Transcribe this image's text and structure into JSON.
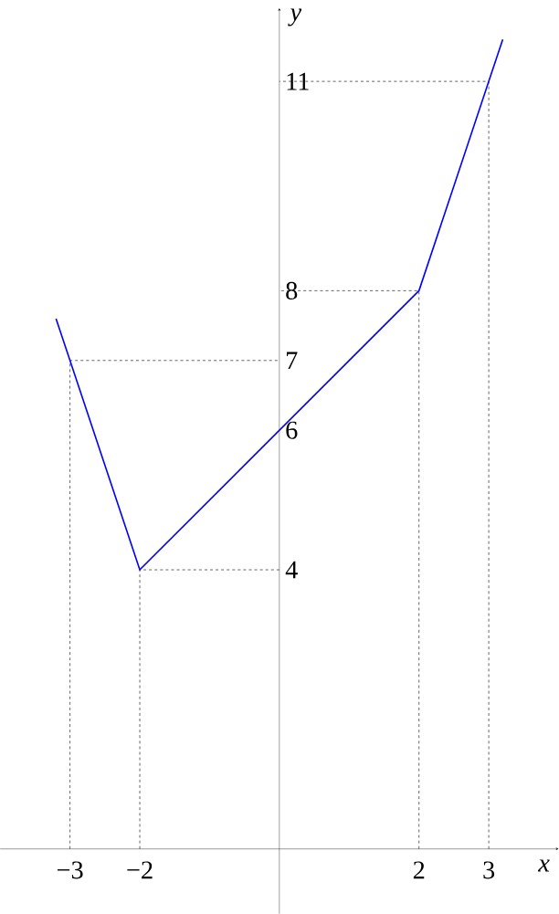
{
  "chart_data": {
    "type": "line",
    "xlabel": "x",
    "ylabel": "y",
    "series": [
      {
        "color": "#0000ff",
        "x": [
          -3.2,
          -3,
          -2,
          2,
          3,
          3.2
        ],
        "values": [
          7.6,
          7,
          4,
          8,
          11,
          11.6
        ]
      },
      {
        "color": "#000000",
        "line_style": "dashed",
        "x": [
          -3,
          -3,
          0
        ],
        "values": [
          0,
          7,
          7
        ]
      },
      {
        "color": "#000000",
        "line_style": "dashed",
        "x": [
          -2,
          -2,
          0
        ],
        "values": [
          0,
          4,
          4
        ]
      },
      {
        "color": "#000000",
        "line_style": "dashed",
        "x": [
          2,
          2,
          0
        ],
        "values": [
          0,
          8,
          8
        ]
      },
      {
        "color": "#000000",
        "line_style": "dashed",
        "x": [
          3,
          3,
          0
        ],
        "values": [
          0,
          11,
          11
        ]
      }
    ],
    "xlim": [
      -4,
      4
    ],
    "ylim": [
      -0.93,
      12.05
    ],
    "xticks": [
      {
        "value": -3,
        "label": "−3"
      },
      {
        "value": -2,
        "label": "−2"
      },
      2,
      3
    ],
    "yticks": [
      4,
      6,
      7,
      8,
      11
    ],
    "grid": false,
    "marker": "none",
    "line_style": "solid"
  }
}
